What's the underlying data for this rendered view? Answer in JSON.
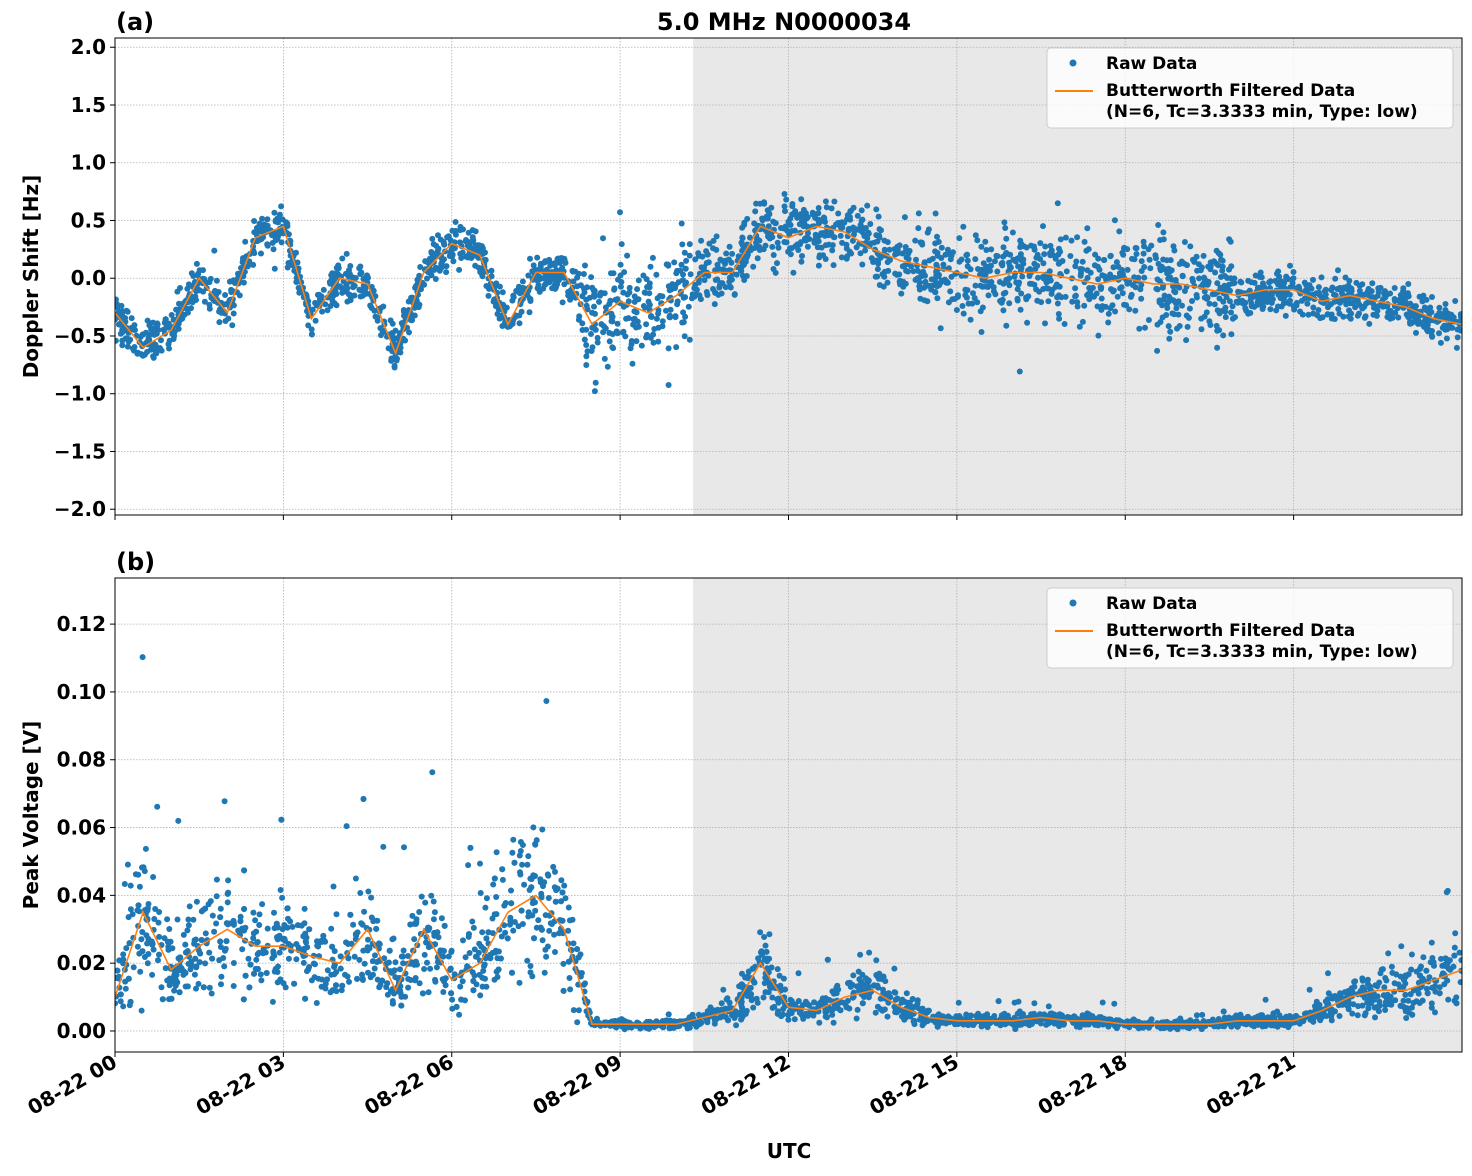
{
  "chart_data": [
    {
      "type": "scatter",
      "panel_label": "(a)",
      "title": "5.0 MHz N0000034",
      "xlabel": "",
      "ylabel": "Doppler Shift [Hz]",
      "xlim_hours": [
        0,
        24
      ],
      "ylim": [
        -2.05,
        2.08
      ],
      "yticks": [
        -2.0,
        -1.5,
        -1.0,
        -0.5,
        0.0,
        0.5,
        1.0,
        1.5,
        2.0
      ],
      "ytick_labels": [
        "−2.0",
        "−1.5",
        "−1.0",
        "−0.5",
        "0.0",
        "0.5",
        "1.0",
        "1.5",
        "2.0"
      ],
      "grid": true,
      "legend_placement": "top-right",
      "shaded_region_hours": [
        10.3,
        24
      ],
      "shade_color": "#e8e8e8",
      "series": [
        {
          "name": "Raw Data",
          "kind": "scatter",
          "color": "#1f77b4",
          "spread_hours": [
            0,
            8.3,
            10.3,
            11,
            14,
            20,
            24
          ],
          "spread_halfwidth": [
            0.2,
            0.5,
            0.35,
            0.3,
            0.45,
            0.2
          ]
        },
        {
          "name": "Butterworth Filtered Data",
          "name_line2": "(N=6, Tc=3.3333 min, Type: low)",
          "kind": "line",
          "color": "#ff7f0e",
          "x_hours": [
            0,
            0.5,
            1,
            1.5,
            2,
            2.5,
            3,
            3.5,
            4,
            4.5,
            5,
            5.5,
            6,
            6.5,
            7,
            7.5,
            8,
            8.5,
            9,
            9.5,
            10,
            10.5,
            11,
            11.5,
            12,
            12.5,
            13,
            13.5,
            14,
            14.5,
            15,
            15.5,
            16,
            16.5,
            17,
            17.5,
            18,
            18.5,
            19,
            19.5,
            20,
            20.5,
            21,
            21.5,
            22,
            22.5,
            23,
            23.5,
            24
          ],
          "values": [
            -0.3,
            -0.6,
            -0.45,
            0.0,
            -0.3,
            0.35,
            0.45,
            -0.35,
            0.0,
            -0.05,
            -0.65,
            0.05,
            0.3,
            0.2,
            -0.4,
            0.05,
            0.05,
            -0.4,
            -0.2,
            -0.3,
            -0.15,
            0.05,
            0.05,
            0.45,
            0.35,
            0.45,
            0.4,
            0.25,
            0.15,
            0.1,
            0.05,
            0.0,
            0.05,
            0.05,
            0.0,
            -0.05,
            0.0,
            -0.05,
            -0.05,
            -0.1,
            -0.15,
            -0.1,
            -0.1,
            -0.2,
            -0.15,
            -0.2,
            -0.25,
            -0.35,
            -0.4
          ]
        }
      ]
    },
    {
      "type": "scatter",
      "panel_label": "(b)",
      "xlabel": "UTC",
      "ylabel": "Peak Voltage [V]",
      "xlim_hours": [
        0,
        24
      ],
      "ylim": [
        -0.0062,
        0.1336
      ],
      "yticks": [
        0.0,
        0.02,
        0.04,
        0.06,
        0.08,
        0.1,
        0.12
      ],
      "ytick_labels": [
        "0.00",
        "0.02",
        "0.04",
        "0.06",
        "0.08",
        "0.10",
        "0.12"
      ],
      "xticks_hours": [
        0,
        3,
        6,
        9,
        12,
        15,
        18,
        21
      ],
      "xtick_labels": [
        "08-22 00",
        "08-22 03",
        "08-22 06",
        "08-22 09",
        "08-22 12",
        "08-22 15",
        "08-22 18",
        "08-22 21"
      ],
      "grid": true,
      "legend_placement": "top-right",
      "shaded_region_hours": [
        10.3,
        24
      ],
      "shade_color": "#e8e8e8",
      "series": [
        {
          "name": "Raw Data",
          "kind": "scatter",
          "color": "#1f77b4",
          "spread_ratio": 0.7
        },
        {
          "name": "Butterworth Filtered Data",
          "name_line2": "(N=6, Tc=3.3333 min, Type: low)",
          "kind": "line",
          "color": "#ff7f0e",
          "x_hours": [
            0,
            0.5,
            1,
            1.5,
            2,
            2.5,
            3,
            3.5,
            4,
            4.5,
            5,
            5.5,
            6,
            6.5,
            7,
            7.5,
            8,
            8.5,
            9,
            9.5,
            10,
            10.5,
            11,
            11.5,
            12,
            12.5,
            13,
            13.5,
            14,
            14.5,
            15,
            15.5,
            16,
            16.5,
            17,
            17.5,
            18,
            18.5,
            19,
            19.5,
            20,
            20.5,
            21,
            21.5,
            22,
            22.5,
            23,
            23.5,
            24
          ],
          "values": [
            0.01,
            0.035,
            0.018,
            0.025,
            0.03,
            0.025,
            0.025,
            0.022,
            0.02,
            0.03,
            0.012,
            0.03,
            0.015,
            0.02,
            0.035,
            0.04,
            0.03,
            0.002,
            0.002,
            0.002,
            0.002,
            0.004,
            0.006,
            0.02,
            0.007,
            0.006,
            0.01,
            0.012,
            0.007,
            0.004,
            0.003,
            0.003,
            0.003,
            0.004,
            0.003,
            0.003,
            0.002,
            0.002,
            0.002,
            0.002,
            0.003,
            0.003,
            0.003,
            0.006,
            0.01,
            0.012,
            0.012,
            0.015,
            0.018
          ]
        }
      ]
    }
  ]
}
